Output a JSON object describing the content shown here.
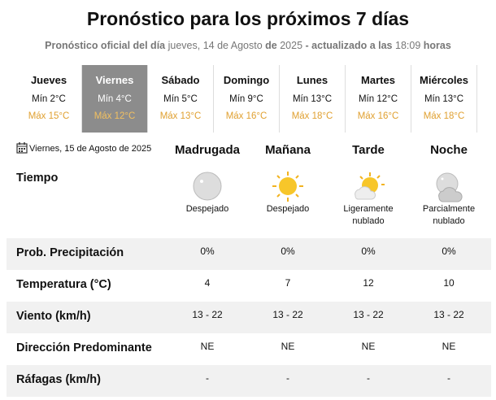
{
  "header": {
    "title": "Pronóstico para los próximos 7 días",
    "subtitle": [
      "Pronóstico oficial del día",
      "jueves, 14 de Agosto",
      "de",
      "2025",
      "- actualizado a las",
      "18:09",
      "horas"
    ]
  },
  "days": [
    {
      "name": "Jueves",
      "min": "Mín 2°C",
      "max": "Máx 15°C"
    },
    {
      "name": "Viernes",
      "min": "Mín 4°C",
      "max": "Máx 12°C"
    },
    {
      "name": "Sábado",
      "min": "Mín 5°C",
      "max": "Máx 13°C"
    },
    {
      "name": "Domingo",
      "min": "Mín 9°C",
      "max": "Máx 16°C"
    },
    {
      "name": "Lunes",
      "min": "Mín 13°C",
      "max": "Máx 18°C"
    },
    {
      "name": "Martes",
      "min": "Mín 12°C",
      "max": "Máx 16°C"
    },
    {
      "name": "Miércoles",
      "min": "Mín 13°C",
      "max": "Máx 18°C"
    }
  ],
  "selected_day": 1,
  "forecast": {
    "date": "Viernes, 15 de Agosto de 2025",
    "periods": [
      "Madrugada",
      "Mañana",
      "Tarde",
      "Noche"
    ],
    "sky": {
      "label": "Tiempo",
      "values": [
        "Despejado",
        "Despejado",
        "Ligeramente nublado",
        "Parcialmente nublado"
      ]
    },
    "rows": [
      {
        "label": "Prob. Precipitación",
        "values": [
          "0%",
          "0%",
          "0%",
          "0%"
        ]
      },
      {
        "label": "Temperatura (°C)",
        "values": [
          4,
          7,
          12,
          10
        ]
      },
      {
        "label": "Viento (km/h)",
        "values": [
          "13 - 22",
          "13 - 22",
          "13 - 22",
          "13 - 22"
        ]
      },
      {
        "label": "Dirección Predominante",
        "values": [
          "NE",
          "NE",
          "NE",
          "NE"
        ]
      },
      {
        "label": "Ráfagas (km/h)",
        "values": [
          "-",
          "-",
          "-",
          "-"
        ]
      }
    ]
  }
}
